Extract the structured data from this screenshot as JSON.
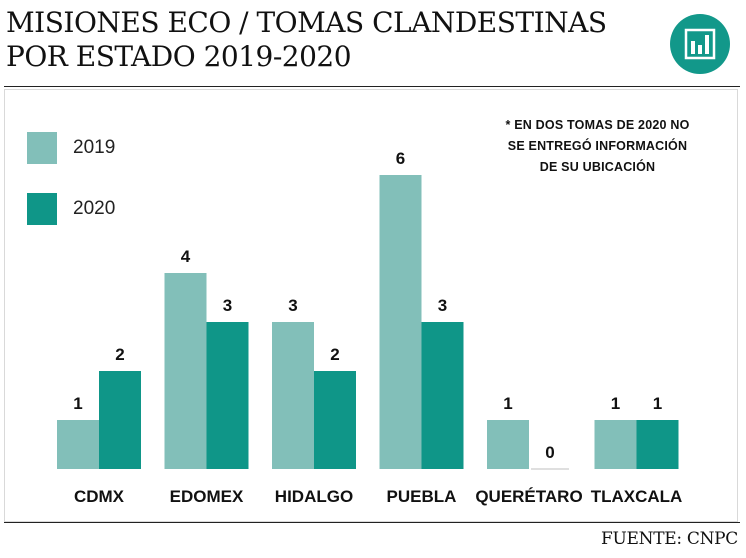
{
  "title_lines": [
    "MISIONES ECO / TOMAS CLANDESTINAS",
    "POR ESTADO 2019-2020"
  ],
  "source": "FUENTE: CNPC",
  "note_lines": [
    "* EN DOS TOMAS DE 2020 NO",
    "SE ENTREGÓ INFORMACIÓN",
    "DE SU UBICACIÓN"
  ],
  "logo_icon": "bar-chart-icon",
  "colors": {
    "2019": "#82bfb9",
    "2020": "#0f9688",
    "logo": "#12988a"
  },
  "chart_data": {
    "type": "bar",
    "title": "MISIONES ECO / TOMAS CLANDESTINAS POR ESTADO 2019-2020",
    "categories": [
      "CDMX",
      "EDOMEX",
      "HIDALGO",
      "PUEBLA",
      "QUERÉTARO",
      "TLAXCALA"
    ],
    "series": [
      {
        "name": "2019",
        "values": [
          1,
          4,
          3,
          6,
          1,
          1
        ]
      },
      {
        "name": "2020",
        "values": [
          2,
          3,
          2,
          3,
          0,
          1
        ]
      }
    ],
    "ylim": [
      0,
      6
    ],
    "grid": false,
    "legend": "top-left",
    "xlabel": "",
    "ylabel": ""
  }
}
